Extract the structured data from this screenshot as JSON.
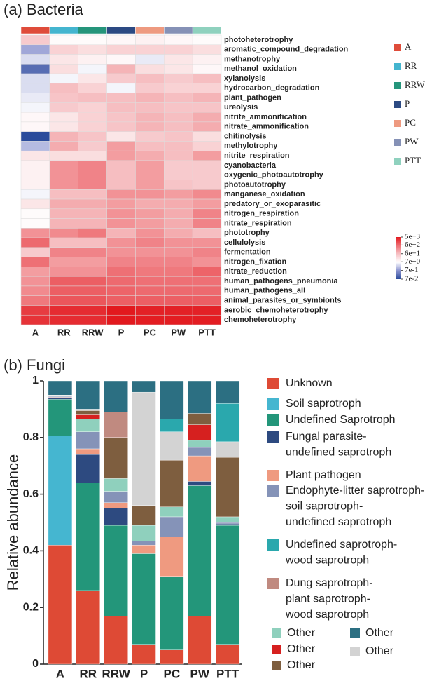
{
  "chart_data": [
    {
      "type": "heatmap",
      "title": "(a) Bacteria",
      "columns": [
        "A",
        "RR",
        "RRW",
        "P",
        "PC",
        "PW",
        "PTT"
      ],
      "groups": [
        {
          "name": "A",
          "color": "#df4c3a"
        },
        {
          "name": "RR",
          "color": "#44b5cf"
        },
        {
          "name": "RRW",
          "color": "#25957b"
        },
        {
          "name": "P",
          "color": "#2c4a83"
        },
        {
          "name": "PC",
          "color": "#ee9a80"
        },
        {
          "name": "PW",
          "color": "#8591b6"
        },
        {
          "name": "PTT",
          "color": "#8fd1be"
        }
      ],
      "rows": [
        "photoheterotrophy",
        "aromatic_compound_degradation",
        "methanotrophy",
        "methanol_oxidation",
        "xylanolysis",
        "hydrocarbon_degradation",
        "plant_pathogen",
        "ureolysis",
        "nitrite_ammonification",
        "nitrate_ammonification",
        "chitinolysis",
        "methylotrophy",
        "nitrite_respiration",
        "cyanobacteria",
        "oxygenic_photoautotrophy",
        "photoautotrophy",
        "manganese_oxidation",
        "predatory_or_exoparasitic",
        "nitrogen_respiration",
        "nitrate_respiration",
        "phototrophy",
        "cellulolysis",
        "fermentation",
        "nitrogen_fixation",
        "nitrate_reduction",
        "human_pathogens_pneumonia",
        "human_pathogens_all",
        "animal_parasites_or_symbionts",
        "aerobic_chemoheterotrophy",
        "chemoheterotrophy"
      ],
      "values": [
        [
          40,
          7,
          7,
          8,
          10,
          8,
          7
        ],
        [
          1,
          30,
          20,
          30,
          30,
          30,
          20
        ],
        [
          3,
          15,
          10,
          8,
          4,
          15,
          10
        ],
        [
          0.2,
          20,
          5,
          80,
          20,
          15,
          8
        ],
        [
          3,
          5,
          15,
          40,
          60,
          40,
          60
        ],
        [
          3,
          60,
          30,
          5,
          40,
          30,
          30
        ],
        [
          4,
          50,
          60,
          60,
          80,
          60,
          80
        ],
        [
          5,
          40,
          30,
          60,
          60,
          50,
          50
        ],
        [
          8,
          15,
          30,
          50,
          80,
          60,
          100
        ],
        [
          8,
          15,
          30,
          50,
          80,
          60,
          100
        ],
        [
          0.07,
          80,
          50,
          15,
          40,
          50,
          20
        ],
        [
          1.5,
          100,
          40,
          150,
          60,
          60,
          30
        ],
        [
          15,
          20,
          20,
          150,
          100,
          60,
          150
        ],
        [
          10,
          200,
          300,
          60,
          150,
          40,
          40
        ],
        [
          10,
          200,
          300,
          60,
          150,
          40,
          40
        ],
        [
          10,
          200,
          300,
          60,
          150,
          50,
          40
        ],
        [
          5,
          60,
          60,
          200,
          200,
          150,
          250
        ],
        [
          15,
          100,
          100,
          150,
          100,
          100,
          150
        ],
        [
          7,
          80,
          80,
          200,
          150,
          100,
          300
        ],
        [
          7,
          80,
          80,
          200,
          150,
          100,
          300
        ],
        [
          200,
          250,
          400,
          80,
          200,
          100,
          60
        ],
        [
          600,
          60,
          60,
          200,
          300,
          200,
          200
        ],
        [
          40,
          300,
          300,
          200,
          200,
          200,
          300
        ],
        [
          500,
          150,
          150,
          300,
          300,
          300,
          200
        ],
        [
          150,
          200,
          200,
          500,
          400,
          400,
          700
        ],
        [
          200,
          800,
          800,
          600,
          500,
          500,
          500
        ],
        [
          250,
          800,
          800,
          700,
          600,
          600,
          600
        ],
        [
          400,
          1000,
          1000,
          800,
          800,
          800,
          800
        ],
        [
          2000,
          3000,
          3000,
          5000,
          4000,
          4000,
          4000
        ],
        [
          2500,
          3000,
          3000,
          5000,
          4500,
          4500,
          4500
        ]
      ],
      "log_scale": true,
      "zlim": [
        0.07,
        5000
      ],
      "colors": [
        "#2a4b9b",
        "#8a93cf",
        "#ffffff",
        "#f6c0c3",
        "#ee6e73",
        "#e2191e"
      ],
      "zticks": [
        {
          "value": 5000,
          "label": "5e+3"
        },
        {
          "value": 600,
          "label": "6e+2"
        },
        {
          "value": 60,
          "label": "6e+1"
        },
        {
          "value": 7,
          "label": "7e+0"
        },
        {
          "value": 0.7,
          "label": "7e-1"
        },
        {
          "value": 0.07,
          "label": "7e-2"
        }
      ]
    },
    {
      "type": "stacked_bar",
      "title": "(b) Fungi",
      "y_label": "Relative abundance",
      "categories": [
        "A",
        "RR",
        "RRW",
        "P",
        "PC",
        "PW",
        "PTT"
      ],
      "ylim": [
        0,
        1
      ],
      "yticks": [
        0,
        0.2,
        0.4,
        0.6,
        0.8,
        1
      ],
      "series": [
        {
          "name": "Unknown",
          "color": "#de4a35",
          "values": [
            0.42,
            0.26,
            0.17,
            0.07,
            0.05,
            0.17,
            0.07
          ]
        },
        {
          "name": "Soil saprotroph",
          "color": "#45b6d0",
          "values": [
            0.385,
            0,
            0,
            0,
            0,
            0,
            0
          ]
        },
        {
          "name": "Undefined Saprotroph",
          "color": "#23967a",
          "values": [
            0.13,
            0.38,
            0.32,
            0.32,
            0.26,
            0.46,
            0.42
          ]
        },
        {
          "name": "Fungal parasite-undefined saprotroph",
          "color": "#2d4a80",
          "values": [
            0.005,
            0.1,
            0.06,
            0,
            0,
            0.015,
            0.005
          ]
        },
        {
          "name": "Plant pathogen",
          "color": "#ef9a80",
          "values": [
            0.002,
            0.02,
            0.02,
            0.03,
            0.14,
            0.09,
            0
          ]
        },
        {
          "name": "Endophyte-litter saprotroph-soil saprotroph-undefined saprotroph",
          "color": "#8593b8",
          "values": [
            0.003,
            0.06,
            0.04,
            0.015,
            0.07,
            0.03,
            0.005
          ]
        },
        {
          "name": "Other",
          "color": "#8fd0bd",
          "values": [
            0.002,
            0.045,
            0.045,
            0.055,
            0.035,
            0.025,
            0.02
          ]
        },
        {
          "name": "Other",
          "color": "#d6201f",
          "values": [
            0,
            0.015,
            0,
            0,
            0,
            0.055,
            0
          ]
        },
        {
          "name": "Other",
          "color": "#7e5e3f",
          "values": [
            0.002,
            0.015,
            0.145,
            0.07,
            0.165,
            0.04,
            0.21
          ]
        },
        {
          "name": "Dung saprotroph-plant saprotroph-wood saprotroph",
          "color": "#c08a80",
          "values": [
            0,
            0,
            0.09,
            0,
            0,
            0,
            0
          ]
        },
        {
          "name": "Other",
          "color": "#d3d3d3",
          "values": [
            0.001,
            0.005,
            0,
            0.4,
            0.1,
            0,
            0.055
          ]
        },
        {
          "name": "Undefined saprotroph-wood saprotroph",
          "color": "#2aa8ad",
          "values": [
            0,
            0,
            0,
            0,
            0.045,
            0,
            0.135
          ]
        },
        {
          "name": "Other",
          "color": "#2c6f82",
          "values": [
            0.05,
            0.1,
            0.11,
            0.04,
            0.135,
            0.115,
            0.08
          ]
        }
      ]
    }
  ]
}
